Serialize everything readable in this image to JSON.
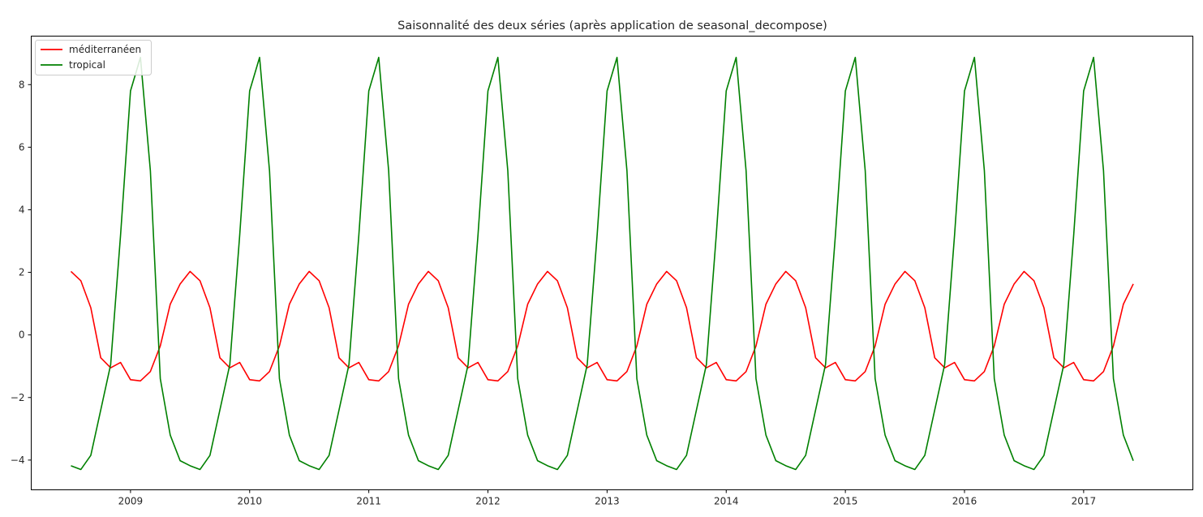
{
  "chart_data": {
    "type": "line",
    "title": "Saisonnalité des deux séries (après application de seasonal_decompose)",
    "xlabel": "",
    "ylabel": "",
    "x_start": "2008-07",
    "x_frequency": "monthly",
    "xlim": [
      "2008-03",
      "2017-12"
    ],
    "xticks": [
      {
        "label": "2009",
        "date": "2009-01"
      },
      {
        "label": "2010",
        "date": "2010-01"
      },
      {
        "label": "2011",
        "date": "2011-01"
      },
      {
        "label": "2012",
        "date": "2012-01"
      },
      {
        "label": "2013",
        "date": "2013-01"
      },
      {
        "label": "2014",
        "date": "2014-01"
      },
      {
        "label": "2015",
        "date": "2015-01"
      },
      {
        "label": "2016",
        "date": "2016-01"
      },
      {
        "label": "2017",
        "date": "2017-01"
      }
    ],
    "ylim": [
      -4.95,
      9.55
    ],
    "yticks": [
      -4,
      -2,
      0,
      2,
      4,
      6,
      8
    ],
    "ytick_labels": [
      "−4",
      "−2",
      "0",
      "2",
      "4",
      "6",
      "8"
    ],
    "grid": false,
    "legend_position": "upper-left",
    "series": [
      {
        "name": "méditerranéen",
        "color": "#ff0000",
        "values": [
          2.03,
          1.73,
          0.87,
          -0.73,
          -1.05,
          -0.88,
          -1.43,
          -1.47,
          -1.17,
          -0.35,
          0.98,
          1.63,
          2.03,
          1.73,
          0.87,
          -0.73,
          -1.05,
          -0.88,
          -1.43,
          -1.47,
          -1.17,
          -0.35,
          0.98,
          1.63,
          2.03,
          1.73,
          0.87,
          -0.73,
          -1.05,
          -0.88,
          -1.43,
          -1.47,
          -1.17,
          -0.35,
          0.98,
          1.63,
          2.03,
          1.73,
          0.87,
          -0.73,
          -1.05,
          -0.88,
          -1.43,
          -1.47,
          -1.17,
          -0.35,
          0.98,
          1.63,
          2.03,
          1.73,
          0.87,
          -0.73,
          -1.05,
          -0.88,
          -1.43,
          -1.47,
          -1.17,
          -0.35,
          0.98,
          1.63,
          2.03,
          1.73,
          0.87,
          -0.73,
          -1.05,
          -0.88,
          -1.43,
          -1.47,
          -1.17,
          -0.35,
          0.98,
          1.63,
          2.03,
          1.73,
          0.87,
          -0.73,
          -1.05,
          -0.88,
          -1.43,
          -1.47,
          -1.17,
          -0.35,
          0.98,
          1.63,
          2.03,
          1.73,
          0.87,
          -0.73,
          -1.05,
          -0.88,
          -1.43,
          -1.47,
          -1.17,
          -0.35,
          0.98,
          1.63,
          2.03,
          1.73,
          0.87,
          -0.73,
          -1.05,
          -0.88,
          -1.43,
          -1.47,
          -1.17,
          -0.35,
          0.98,
          1.63
        ]
      },
      {
        "name": "tropical",
        "color": "#008000",
        "values": [
          -4.18,
          -4.3,
          -3.85,
          -2.4,
          -0.95,
          3.2,
          7.8,
          8.87,
          5.25,
          -1.4,
          -3.2,
          -4.02,
          -4.18,
          -4.3,
          -3.85,
          -2.4,
          -0.95,
          3.2,
          7.8,
          8.87,
          5.25,
          -1.4,
          -3.2,
          -4.02,
          -4.18,
          -4.3,
          -3.85,
          -2.4,
          -0.95,
          3.2,
          7.8,
          8.87,
          5.25,
          -1.4,
          -3.2,
          -4.02,
          -4.18,
          -4.3,
          -3.85,
          -2.4,
          -0.95,
          3.2,
          7.8,
          8.87,
          5.25,
          -1.4,
          -3.2,
          -4.02,
          -4.18,
          -4.3,
          -3.85,
          -2.4,
          -0.95,
          3.2,
          7.8,
          8.87,
          5.25,
          -1.4,
          -3.2,
          -4.02,
          -4.18,
          -4.3,
          -3.85,
          -2.4,
          -0.95,
          3.2,
          7.8,
          8.87,
          5.25,
          -1.4,
          -3.2,
          -4.02,
          -4.18,
          -4.3,
          -3.85,
          -2.4,
          -0.95,
          3.2,
          7.8,
          8.87,
          5.25,
          -1.4,
          -3.2,
          -4.02,
          -4.18,
          -4.3,
          -3.85,
          -2.4,
          -0.95,
          3.2,
          7.8,
          8.87,
          5.25,
          -1.4,
          -3.2,
          -4.02,
          -4.18,
          -4.3,
          -3.85,
          -2.4,
          -0.95,
          3.2,
          7.8,
          8.87,
          5.25,
          -1.4,
          -3.2,
          -4.02
        ]
      }
    ]
  }
}
